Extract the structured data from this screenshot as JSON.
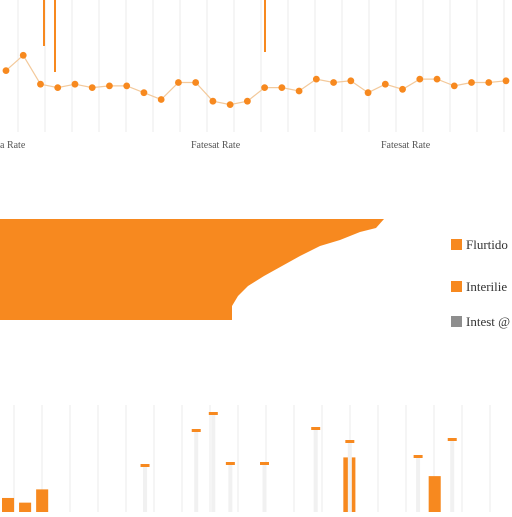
{
  "colors": {
    "accent": "#f7891f",
    "grid": "#ebebeb",
    "gray": "#8e8e8e",
    "text": "#555555"
  },
  "chart_data": [
    {
      "type": "line",
      "xlabel_fragments": [
        "Fatesat Rate",
        "Fatesat Rate",
        "Fatesat Rate"
      ],
      "xlabel_visible": [
        "a Rate",
        "Fatesat Rate",
        "Fatesat Rate"
      ],
      "grid": true,
      "series": [
        {
          "values": [
            22,
            31,
            14,
            12,
            14,
            12,
            13,
            13,
            9,
            5,
            15,
            15,
            4,
            2,
            4,
            12,
            12,
            10,
            17,
            15,
            16,
            9,
            14,
            11,
            17,
            17,
            13,
            15,
            15,
            16
          ]
        }
      ]
    },
    {
      "type": "area",
      "fill": "#f7891f",
      "grid": false,
      "series": [
        {
          "values": [
            100,
            100,
            100,
            100,
            100,
            100,
            100,
            100,
            100,
            100,
            100,
            100,
            100,
            100,
            100,
            100,
            100,
            100,
            100,
            100,
            100,
            92,
            82,
            70,
            60,
            48,
            37,
            26,
            19,
            12,
            8,
            4,
            3,
            2,
            1
          ]
        }
      ],
      "legend": {
        "placement": "right",
        "entries": [
          {
            "label": "Flurtido",
            "color": "#f7891f"
          },
          {
            "label": "Interilie",
            "color": "#f7891f"
          },
          {
            "label": "Intest @",
            "color": "#8e8e8e"
          }
        ]
      }
    },
    {
      "type": "bar",
      "grid": true,
      "values": [
        18,
        12,
        29,
        0,
        0,
        0,
        0,
        0,
        0,
        0,
        0,
        0,
        0,
        0,
        0,
        0,
        0,
        0,
        0,
        0,
        70,
        0,
        0,
        0,
        0,
        46,
        0,
        0,
        0,
        0
      ],
      "marker_values": [
        0,
        0,
        0,
        0,
        0,
        0,
        0,
        0,
        48,
        0,
        0,
        83,
        100,
        50,
        0,
        50,
        0,
        0,
        85,
        0,
        72,
        0,
        0,
        0,
        57,
        0,
        74,
        0,
        0,
        0
      ]
    }
  ]
}
